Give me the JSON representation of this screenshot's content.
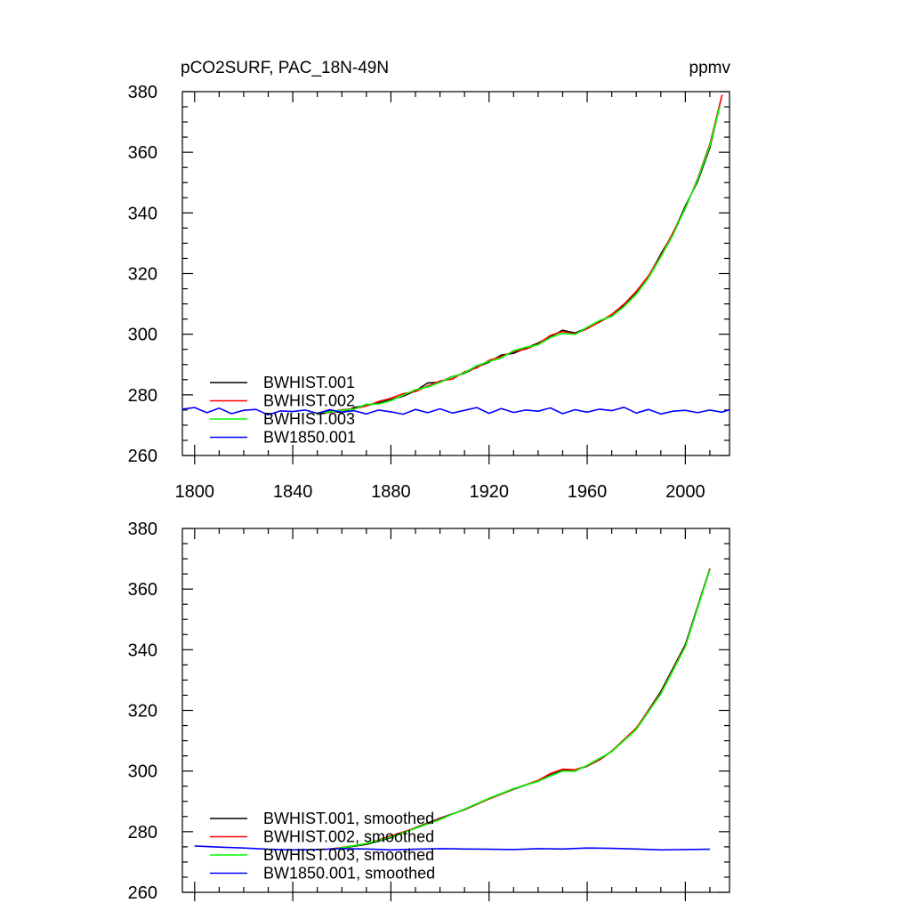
{
  "header": {
    "left_title": "pCO2SURF, PAC_18N-49N",
    "right_title": "ppmv"
  },
  "colors": {
    "BWHIST.001": "#000000",
    "BWHIST.002": "#ff0000",
    "BWHIST.003": "#00ff00",
    "BW1850.001": "#0000ff"
  },
  "chart_data": [
    {
      "type": "line",
      "title": "pCO2SURF, PAC_18N-49N",
      "units": "ppmv",
      "xlim": [
        1795,
        2018
      ],
      "ylim": [
        260,
        380
      ],
      "xticks": [
        1800,
        1840,
        1880,
        1920,
        1960,
        2000
      ],
      "yticks": [
        260,
        280,
        300,
        320,
        340,
        360,
        380
      ],
      "legend_position": "bottom-left",
      "grid": false,
      "series": [
        {
          "name": "BWHIST.001",
          "x": [
            1850,
            1855,
            1860,
            1865,
            1870,
            1875,
            1880,
            1885,
            1890,
            1895,
            1900,
            1905,
            1910,
            1915,
            1920,
            1925,
            1930,
            1935,
            1940,
            1945,
            1950,
            1955,
            1960,
            1965,
            1970,
            1975,
            1980,
            1985,
            1990,
            1995,
            2000,
            2005,
            2010,
            2014
          ],
          "y": [
            273.5,
            274.6,
            274.2,
            275.8,
            276.5,
            277.3,
            278.4,
            279.6,
            281.3,
            283.9,
            284.2,
            286.0,
            287.1,
            289.2,
            290.8,
            293.1,
            293.7,
            295.4,
            297.1,
            299.2,
            301.3,
            300.4,
            302.1,
            304.0,
            306.3,
            309.4,
            313.6,
            319.0,
            326.4,
            333.2,
            342.3,
            350.3,
            361.5,
            375.2
          ]
        },
        {
          "name": "BWHIST.002",
          "x": [
            1850,
            1855,
            1860,
            1865,
            1870,
            1875,
            1880,
            1885,
            1890,
            1895,
            1900,
            1905,
            1910,
            1915,
            1920,
            1925,
            1930,
            1935,
            1940,
            1945,
            1950,
            1955,
            1960,
            1965,
            1970,
            1975,
            1980,
            1985,
            1990,
            1995,
            2000,
            2005,
            2010,
            2015
          ],
          "y": [
            273.7,
            274.2,
            275.1,
            275.4,
            276.3,
            277.8,
            278.9,
            280.4,
            281.1,
            282.9,
            284.6,
            285.2,
            287.6,
            288.9,
            291.4,
            292.6,
            294.3,
            295.1,
            296.8,
            299.6,
            300.9,
            300.1,
            301.8,
            304.1,
            306.5,
            309.9,
            314.1,
            319.3,
            325.8,
            333.6,
            341.5,
            351.2,
            362.7,
            379.0
          ]
        },
        {
          "name": "BWHIST.003",
          "x": [
            1850,
            1855,
            1860,
            1865,
            1870,
            1875,
            1880,
            1885,
            1890,
            1895,
            1900,
            1905,
            1910,
            1915,
            1920,
            1925,
            1930,
            1935,
            1940,
            1945,
            1950,
            1955,
            1960,
            1965,
            1970,
            1975,
            1980,
            1985,
            1990,
            1995,
            2000,
            2005,
            2010,
            2014
          ],
          "y": [
            273.6,
            274.4,
            274.9,
            275.3,
            276.9,
            277.0,
            278.1,
            279.9,
            281.7,
            282.6,
            284.1,
            285.9,
            287.3,
            289.6,
            291.0,
            292.2,
            294.6,
            295.7,
            296.5,
            298.9,
            300.3,
            299.9,
            302.3,
            304.5,
            305.9,
            309.1,
            313.2,
            318.6,
            325.5,
            332.8,
            341.7,
            350.9,
            362.1,
            375.0
          ]
        },
        {
          "name": "BW1850.001",
          "x": [
            1795,
            1800,
            1805,
            1810,
            1815,
            1820,
            1825,
            1830,
            1835,
            1840,
            1845,
            1850,
            1855,
            1860,
            1865,
            1870,
            1875,
            1880,
            1885,
            1890,
            1895,
            1900,
            1905,
            1910,
            1915,
            1920,
            1925,
            1930,
            1935,
            1940,
            1945,
            1950,
            1955,
            1960,
            1965,
            1970,
            1975,
            1980,
            1985,
            1990,
            1995,
            2000,
            2005,
            2010,
            2015,
            2018
          ],
          "y": [
            275.3,
            275.8,
            274.1,
            275.6,
            273.8,
            274.9,
            275.2,
            273.4,
            274.7,
            274.5,
            275.0,
            273.9,
            275.1,
            274.3,
            274.8,
            273.7,
            275.0,
            274.4,
            273.6,
            275.2,
            274.1,
            275.4,
            274.0,
            274.9,
            275.8,
            273.9,
            275.5,
            274.2,
            275.0,
            274.6,
            275.7,
            273.8,
            275.1,
            274.3,
            275.3,
            274.8,
            275.9,
            274.0,
            275.2,
            273.7,
            274.6,
            274.9,
            274.1,
            275.0,
            274.3,
            275.1
          ]
        }
      ]
    },
    {
      "type": "line",
      "xlim": [
        1795,
        2018
      ],
      "ylim": [
        260,
        380
      ],
      "xticks": [
        1800,
        1840,
        1880,
        1920,
        1960,
        2000
      ],
      "yticks": [
        260,
        280,
        300,
        320,
        340,
        360,
        380
      ],
      "legend_position": "bottom-left",
      "grid": false,
      "series": [
        {
          "name": "BWHIST.001, smoothed",
          "x": [
            1855,
            1860,
            1870,
            1880,
            1890,
            1900,
            1910,
            1920,
            1930,
            1940,
            1945,
            1950,
            1955,
            1960,
            1965,
            1970,
            1980,
            1990,
            2000,
            2010
          ],
          "y": [
            274.2,
            274.6,
            275.8,
            278.0,
            281.3,
            284.4,
            287.3,
            290.8,
            294.0,
            296.8,
            298.6,
            300.2,
            300.3,
            301.6,
            303.7,
            306.5,
            314.0,
            326.2,
            341.7,
            366.7
          ]
        },
        {
          "name": "BWHIST.002, smoothed",
          "x": [
            1855,
            1860,
            1870,
            1880,
            1890,
            1900,
            1910,
            1920,
            1930,
            1940,
            1945,
            1950,
            1955,
            1960,
            1965,
            1970,
            1980,
            1990,
            2000,
            2010
          ],
          "y": [
            274.3,
            274.8,
            276.0,
            278.6,
            281.2,
            284.2,
            287.4,
            290.8,
            294.1,
            296.9,
            299.2,
            300.6,
            300.4,
            301.7,
            303.8,
            306.6,
            314.2,
            325.7,
            341.3,
            366.5
          ]
        },
        {
          "name": "BWHIST.003, smoothed",
          "x": [
            1855,
            1860,
            1870,
            1880,
            1890,
            1900,
            1910,
            1920,
            1930,
            1940,
            1945,
            1950,
            1955,
            1960,
            1965,
            1970,
            1980,
            1990,
            2000,
            2010
          ],
          "y": [
            274.1,
            274.7,
            276.1,
            278.2,
            281.1,
            284.0,
            287.5,
            291.0,
            294.2,
            296.6,
            298.4,
            300.0,
            299.9,
            301.9,
            304.2,
            306.4,
            313.7,
            325.4,
            341.0,
            366.4
          ]
        },
        {
          "name": "BW1850.001, smoothed",
          "x": [
            1800,
            1810,
            1820,
            1830,
            1840,
            1850,
            1860,
            1870,
            1880,
            1890,
            1900,
            1910,
            1920,
            1930,
            1940,
            1950,
            1960,
            1970,
            1980,
            1990,
            2000,
            2010
          ],
          "y": [
            275.3,
            274.9,
            274.6,
            274.2,
            274.0,
            274.1,
            274.4,
            274.3,
            274.0,
            274.2,
            274.4,
            274.3,
            274.2,
            274.1,
            274.4,
            274.3,
            274.6,
            274.5,
            274.3,
            274.0,
            274.1,
            274.2
          ]
        }
      ]
    }
  ]
}
